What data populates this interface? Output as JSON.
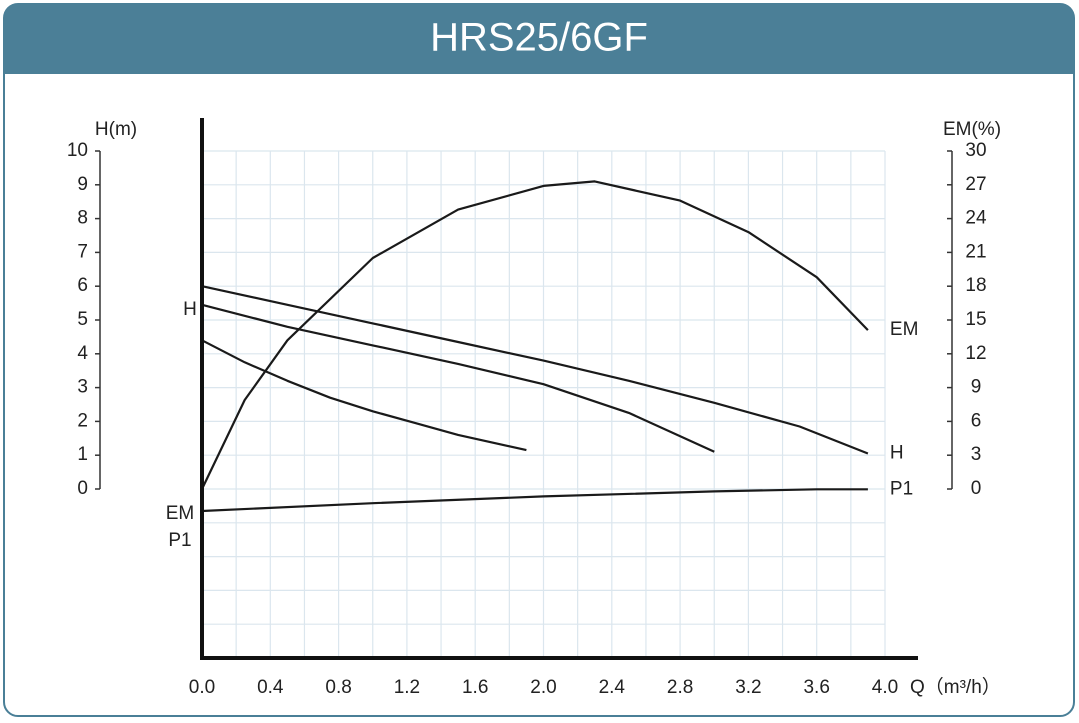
{
  "chart_data": {
    "type": "line",
    "title": "HRS25/6GF",
    "xlabel": "Q（m³/h）",
    "ylabel": "H(m)",
    "y2label": "EM(%)",
    "annotations": [
      "H",
      "EM",
      "P1"
    ],
    "xlim": [
      0,
      4.0
    ],
    "xticks": [
      {
        "value": 0,
        "label": "0.0"
      },
      0.4,
      0.8,
      1.2,
      1.6,
      {
        "value": 2,
        "label": "2.0"
      },
      2.4,
      2.8,
      3.2,
      3.6,
      {
        "value": 4,
        "label": "4.0"
      }
    ],
    "ylim": [
      -5,
      10
    ],
    "yticks": [
      0,
      1,
      2,
      3,
      4,
      5,
      6,
      7,
      8,
      9,
      10
    ],
    "y2lim": [
      -15,
      30
    ],
    "y2ticks": [
      0,
      3,
      6,
      9,
      12,
      15,
      18,
      21,
      24,
      27,
      30
    ],
    "grid": true,
    "color": "#1a1a1a",
    "series": [
      {
        "name": "H",
        "x": [
          0,
          0.5,
          1.0,
          1.5,
          2.0,
          2.5,
          3.0,
          3.5,
          3.9
        ],
        "values": [
          6.0,
          5.45,
          4.9,
          4.35,
          3.8,
          3.2,
          2.55,
          1.85,
          1.05
        ]
      },
      {
        "x": [
          0,
          0.5,
          1.0,
          1.5,
          2.0,
          2.5,
          3.0
        ],
        "values": [
          5.45,
          4.8,
          4.25,
          3.7,
          3.1,
          2.25,
          1.1
        ]
      },
      {
        "x": [
          0,
          0.25,
          0.5,
          0.75,
          1.0,
          1.25,
          1.5,
          1.9
        ],
        "values": [
          4.4,
          3.75,
          3.2,
          2.7,
          2.3,
          1.95,
          1.6,
          1.15
        ]
      },
      {
        "name": "EM",
        "axis": "y2",
        "x": [
          0,
          0.25,
          0.5,
          1.0,
          1.5,
          2.0,
          2.3,
          2.8,
          3.2,
          3.6,
          3.9
        ],
        "values": [
          0,
          7.9,
          13.2,
          20.5,
          24.8,
          26.9,
          27.3,
          25.6,
          22.8,
          18.8,
          14.1
        ]
      },
      {
        "name": "P1",
        "x": [
          0,
          1.0,
          2.0,
          3.0,
          3.6,
          3.9
        ],
        "values": [
          -0.65,
          -0.42,
          -0.22,
          -0.07,
          -0.01,
          -0.01
        ]
      }
    ]
  }
}
